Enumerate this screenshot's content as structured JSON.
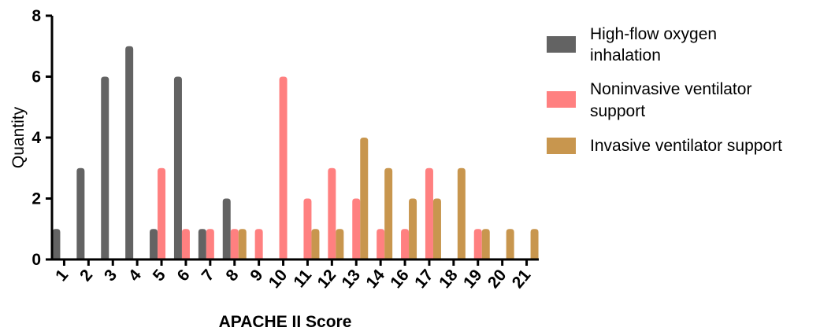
{
  "chart_data": {
    "type": "bar",
    "title": "",
    "xlabel": "APACHE  II Score",
    "ylabel": "Quantity",
    "ylim": [
      0,
      8
    ],
    "yticks": [
      "0",
      "2",
      "4",
      "6",
      "8"
    ],
    "grid": false,
    "legend_position": "right",
    "categories": [
      "1",
      "2",
      "3",
      "4",
      "5",
      "6",
      "7",
      "8",
      "9",
      "10",
      "11",
      "12",
      "13",
      "14",
      "16",
      "17",
      "18",
      "19",
      "20",
      "21"
    ],
    "series": [
      {
        "name": "High-flow oxygen inhalation",
        "color": "#636363",
        "values": [
          1,
          3,
          6,
          7,
          1,
          6,
          1,
          2,
          0,
          0,
          0,
          0,
          0,
          0,
          0,
          0,
          0,
          0,
          0,
          0
        ]
      },
      {
        "name": "Noninvasive ventilator support",
        "color": "#ff8080",
        "values": [
          0,
          0,
          0,
          0,
          3,
          1,
          1,
          1,
          1,
          6,
          2,
          3,
          2,
          1,
          1,
          3,
          0,
          1,
          0,
          0
        ]
      },
      {
        "name": "Invasive ventilator support",
        "color": "#c8964e",
        "values": [
          0,
          0,
          0,
          0,
          0,
          0,
          0,
          1,
          0,
          0,
          1,
          1,
          4,
          3,
          2,
          2,
          3,
          1,
          1,
          1
        ]
      }
    ]
  },
  "legend": {
    "items": [
      {
        "line1": "High-flow oxygen",
        "line2": "inhalation",
        "color": "#636363"
      },
      {
        "line1": "Noninvasive ventilator",
        "line2": "support",
        "color": "#ff8080"
      },
      {
        "line1": "Invasive ventilator support",
        "line2": "",
        "color": "#c8964e"
      }
    ]
  }
}
